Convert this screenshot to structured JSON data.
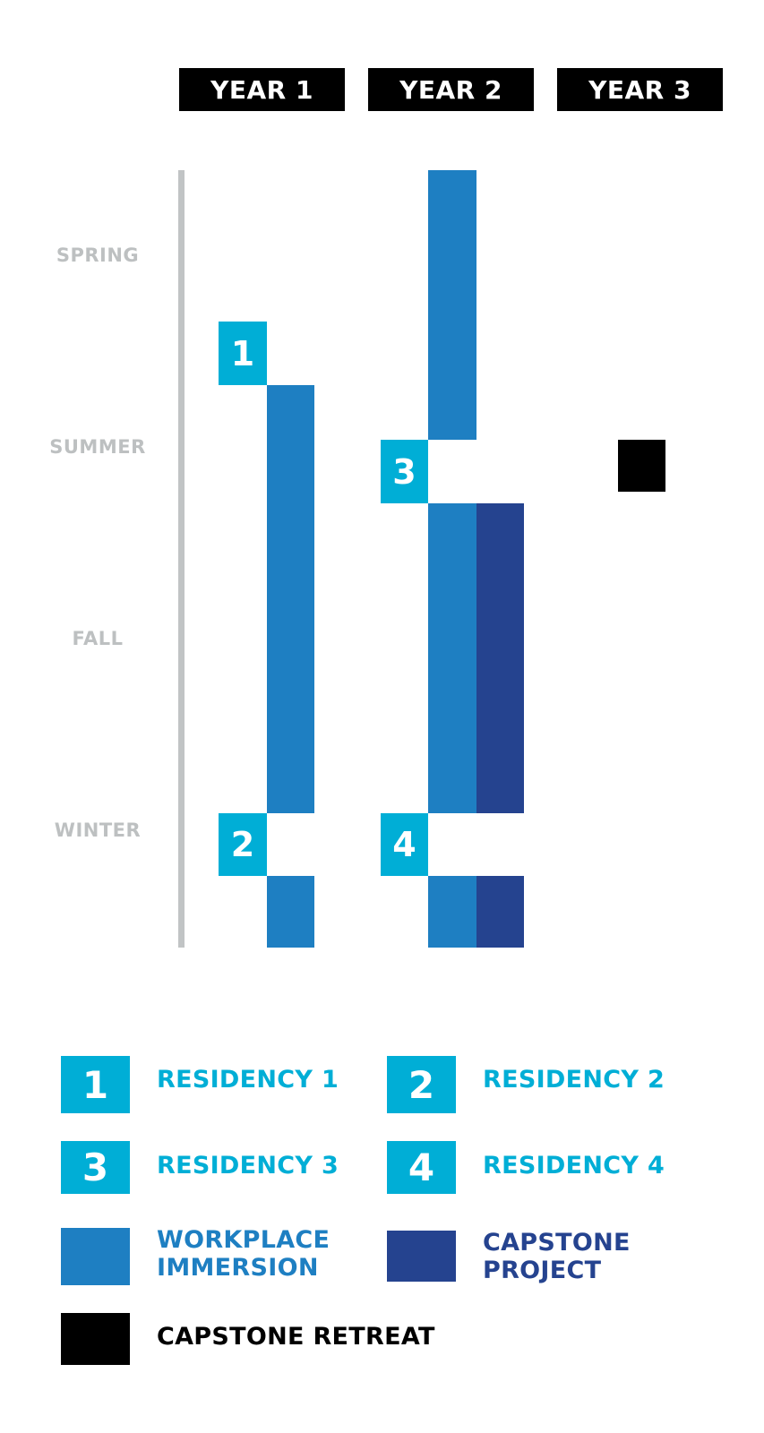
{
  "years": [
    "YEAR 1",
    "YEAR 2",
    "YEAR 3"
  ],
  "seasons": [
    "SPRING",
    "SUMMER",
    "FALL",
    "WINTER"
  ],
  "residency_markers": [
    "1",
    "2",
    "3",
    "4"
  ],
  "legend": {
    "residency_1": {
      "number": "1",
      "label": "RESIDENCY 1"
    },
    "residency_2": {
      "number": "2",
      "label": "RESIDENCY 2"
    },
    "residency_3": {
      "number": "3",
      "label": "RESIDENCY 3"
    },
    "residency_4": {
      "number": "4",
      "label": "RESIDENCY 4"
    },
    "workplace_immersion": {
      "label_line1": "WORKPLACE",
      "label_line2": "IMMERSION"
    },
    "capstone_project": {
      "label_line1": "CAPSTONE",
      "label_line2": "PROJECT"
    },
    "capstone_retreat": {
      "label": "CAPSTONE RETREAT"
    }
  },
  "colors": {
    "residency": "#00aed6",
    "workplace_immersion": "#1e7fc2",
    "capstone_project": "#25438f",
    "capstone_retreat": "#000000",
    "season_label": "#bdc0c1",
    "legend_residency_text": "#00aed6",
    "legend_workplace_text": "#1e7fc2",
    "legend_capstone_text": "#25438f"
  }
}
